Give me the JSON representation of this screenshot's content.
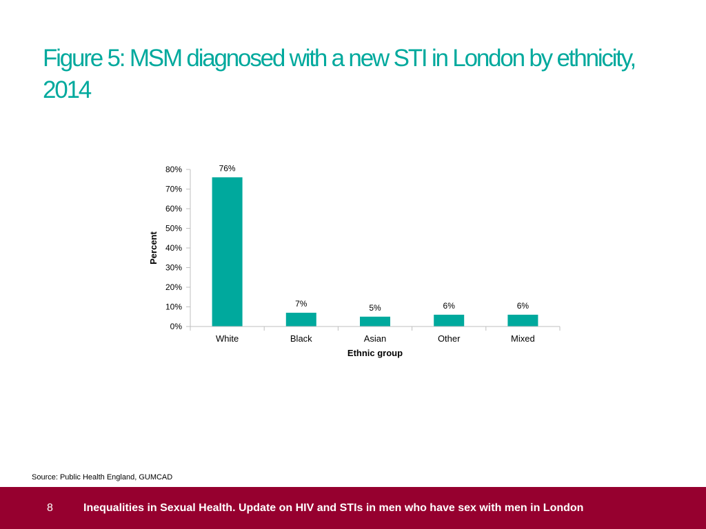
{
  "title": "Figure 5: MSM diagnosed with a new STI in London by ethnicity, 2014",
  "source": "Source: Public Health England, GUMCAD",
  "footer": {
    "page_number": "8",
    "text": "Inequalities in Sexual Health. Update on HIV and STIs in men who have sex with men in London"
  },
  "colors": {
    "title": "#00A99D",
    "bar": "#00A99D",
    "footer_bg": "#96002F",
    "axis": "#BFBFBF"
  },
  "chart_data": {
    "type": "bar",
    "categories": [
      "White",
      "Black",
      "Asian",
      "Other",
      "Mixed"
    ],
    "values": [
      76,
      7,
      5,
      6,
      6
    ],
    "data_labels": [
      "76%",
      "7%",
      "5%",
      "6%",
      "6%"
    ],
    "xlabel": "Ethnic group",
    "ylabel": "Percent",
    "ylim": [
      0,
      80
    ],
    "yticks": [
      0,
      10,
      20,
      30,
      40,
      50,
      60,
      70,
      80
    ],
    "ytick_labels": [
      "0%",
      "10%",
      "20%",
      "30%",
      "40%",
      "50%",
      "60%",
      "70%",
      "80%"
    ],
    "grid": false,
    "legend": "none"
  }
}
